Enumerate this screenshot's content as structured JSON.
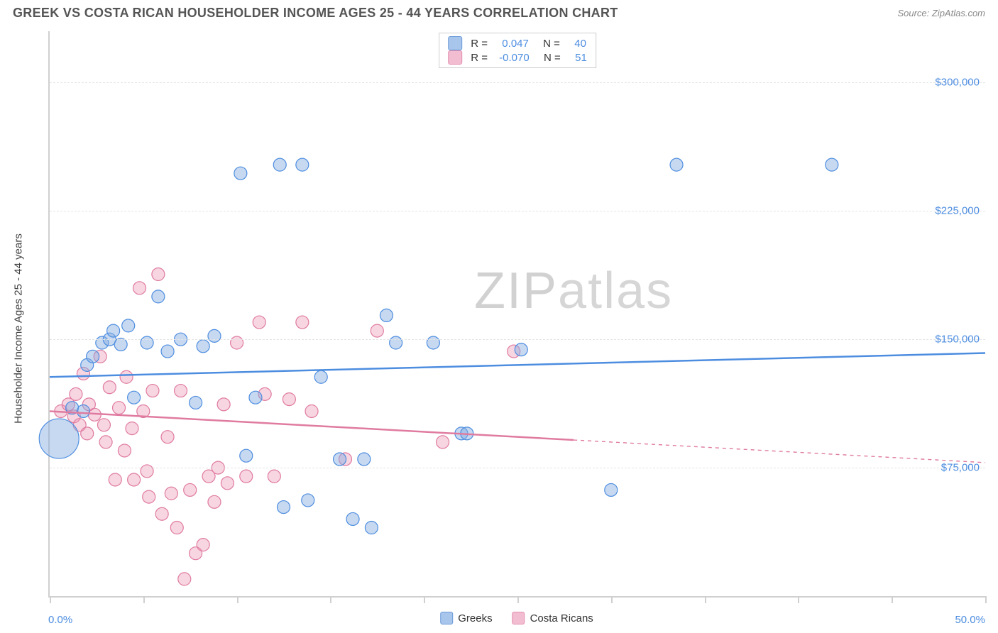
{
  "title": "GREEK VS COSTA RICAN HOUSEHOLDER INCOME AGES 25 - 44 YEARS CORRELATION CHART",
  "source": "Source: ZipAtlas.com",
  "y_axis_label": "Householder Income Ages 25 - 44 years",
  "watermark": {
    "a": "ZIP",
    "b": "atlas"
  },
  "colors": {
    "blue_stroke": "#4d8de0",
    "blue_fill": "rgba(130,170,225,0.45)",
    "pink_stroke": "#e07ba0",
    "pink_fill": "rgba(235,150,180,0.40)",
    "grid": "#e4e4e4",
    "axis": "#d0d0d0",
    "text": "#404040",
    "tick_label": "#4d8de0"
  },
  "chart": {
    "type": "scatter-correlation",
    "xlim": [
      0,
      50
    ],
    "ylim": [
      0,
      330000
    ],
    "x_ticks": [
      0,
      5,
      10,
      15,
      20,
      25,
      30,
      35,
      40,
      45,
      50
    ],
    "x_tick_labels": {
      "left": "0.0%",
      "right": "50.0%"
    },
    "y_gridlines": [
      {
        "value": 75000,
        "label": "$75,000"
      },
      {
        "value": 150000,
        "label": "$150,000"
      },
      {
        "value": 225000,
        "label": "$225,000"
      },
      {
        "value": 300000,
        "label": "$300,000"
      }
    ],
    "marker_radius": 9,
    "line_width": 2.5,
    "background_color": "#ffffff"
  },
  "series": {
    "greeks": {
      "label": "Greeks",
      "swatch_fill": "#a8c5ec",
      "swatch_stroke": "#6a9ad8",
      "R": "0.047",
      "N": "40",
      "trend": {
        "x1": 0,
        "y1": 128000,
        "x2": 50,
        "y2": 142000,
        "dash_from_x": null
      },
      "points": [
        {
          "x": 0.5,
          "y": 92000,
          "r": 28
        },
        {
          "x": 1.2,
          "y": 110000
        },
        {
          "x": 1.8,
          "y": 108000
        },
        {
          "x": 2.0,
          "y": 135000
        },
        {
          "x": 2.3,
          "y": 140000
        },
        {
          "x": 2.8,
          "y": 148000
        },
        {
          "x": 3.2,
          "y": 150000
        },
        {
          "x": 3.4,
          "y": 155000
        },
        {
          "x": 3.8,
          "y": 147000
        },
        {
          "x": 4.2,
          "y": 158000
        },
        {
          "x": 4.5,
          "y": 116000
        },
        {
          "x": 5.2,
          "y": 148000
        },
        {
          "x": 5.8,
          "y": 175000
        },
        {
          "x": 6.3,
          "y": 143000
        },
        {
          "x": 7.0,
          "y": 150000
        },
        {
          "x": 7.8,
          "y": 113000
        },
        {
          "x": 8.2,
          "y": 146000
        },
        {
          "x": 8.8,
          "y": 152000
        },
        {
          "x": 10.2,
          "y": 247000
        },
        {
          "x": 10.5,
          "y": 82000
        },
        {
          "x": 11.0,
          "y": 116000
        },
        {
          "x": 12.3,
          "y": 252000
        },
        {
          "x": 12.5,
          "y": 52000
        },
        {
          "x": 13.5,
          "y": 252000
        },
        {
          "x": 13.8,
          "y": 56000
        },
        {
          "x": 14.5,
          "y": 128000
        },
        {
          "x": 15.5,
          "y": 80000
        },
        {
          "x": 16.2,
          "y": 45000
        },
        {
          "x": 16.8,
          "y": 80000
        },
        {
          "x": 17.2,
          "y": 40000
        },
        {
          "x": 18.0,
          "y": 164000
        },
        {
          "x": 18.5,
          "y": 148000
        },
        {
          "x": 20.5,
          "y": 148000
        },
        {
          "x": 22.0,
          "y": 95000
        },
        {
          "x": 22.3,
          "y": 95000
        },
        {
          "x": 25.2,
          "y": 144000
        },
        {
          "x": 30.0,
          "y": 62000
        },
        {
          "x": 33.5,
          "y": 252000
        },
        {
          "x": 41.8,
          "y": 252000
        }
      ]
    },
    "costa_ricans": {
      "label": "Costa Ricans",
      "swatch_fill": "#f2bdd0",
      "swatch_stroke": "#e48db0",
      "R": "-0.070",
      "N": "51",
      "trend": {
        "x1": 0,
        "y1": 108000,
        "x2": 50,
        "y2": 78000,
        "dash_from_x": 28
      },
      "points": [
        {
          "x": 0.6,
          "y": 108000
        },
        {
          "x": 1.0,
          "y": 112000
        },
        {
          "x": 1.3,
          "y": 105000
        },
        {
          "x": 1.4,
          "y": 118000
        },
        {
          "x": 1.6,
          "y": 100000
        },
        {
          "x": 1.8,
          "y": 130000
        },
        {
          "x": 2.0,
          "y": 95000
        },
        {
          "x": 2.1,
          "y": 112000
        },
        {
          "x": 2.4,
          "y": 106000
        },
        {
          "x": 2.7,
          "y": 140000
        },
        {
          "x": 2.9,
          "y": 100000
        },
        {
          "x": 3.0,
          "y": 90000
        },
        {
          "x": 3.2,
          "y": 122000
        },
        {
          "x": 3.5,
          "y": 68000
        },
        {
          "x": 3.7,
          "y": 110000
        },
        {
          "x": 4.0,
          "y": 85000
        },
        {
          "x": 4.1,
          "y": 128000
        },
        {
          "x": 4.4,
          "y": 98000
        },
        {
          "x": 4.5,
          "y": 68000
        },
        {
          "x": 4.8,
          "y": 180000
        },
        {
          "x": 5.0,
          "y": 108000
        },
        {
          "x": 5.2,
          "y": 73000
        },
        {
          "x": 5.3,
          "y": 58000
        },
        {
          "x": 5.5,
          "y": 120000
        },
        {
          "x": 5.8,
          "y": 188000
        },
        {
          "x": 6.0,
          "y": 48000
        },
        {
          "x": 6.3,
          "y": 93000
        },
        {
          "x": 6.5,
          "y": 60000
        },
        {
          "x": 6.8,
          "y": 40000
        },
        {
          "x": 7.0,
          "y": 120000
        },
        {
          "x": 7.2,
          "y": 10000
        },
        {
          "x": 7.5,
          "y": 62000
        },
        {
          "x": 7.8,
          "y": 25000
        },
        {
          "x": 8.2,
          "y": 30000
        },
        {
          "x": 8.5,
          "y": 70000
        },
        {
          "x": 8.8,
          "y": 55000
        },
        {
          "x": 9.0,
          "y": 75000
        },
        {
          "x": 9.3,
          "y": 112000
        },
        {
          "x": 9.5,
          "y": 66000
        },
        {
          "x": 10.0,
          "y": 148000
        },
        {
          "x": 10.5,
          "y": 70000
        },
        {
          "x": 11.2,
          "y": 160000
        },
        {
          "x": 11.5,
          "y": 118000
        },
        {
          "x": 12.0,
          "y": 70000
        },
        {
          "x": 12.8,
          "y": 115000
        },
        {
          "x": 13.5,
          "y": 160000
        },
        {
          "x": 14.0,
          "y": 108000
        },
        {
          "x": 15.8,
          "y": 80000
        },
        {
          "x": 17.5,
          "y": 155000
        },
        {
          "x": 21.0,
          "y": 90000
        },
        {
          "x": 24.8,
          "y": 143000
        }
      ]
    }
  }
}
